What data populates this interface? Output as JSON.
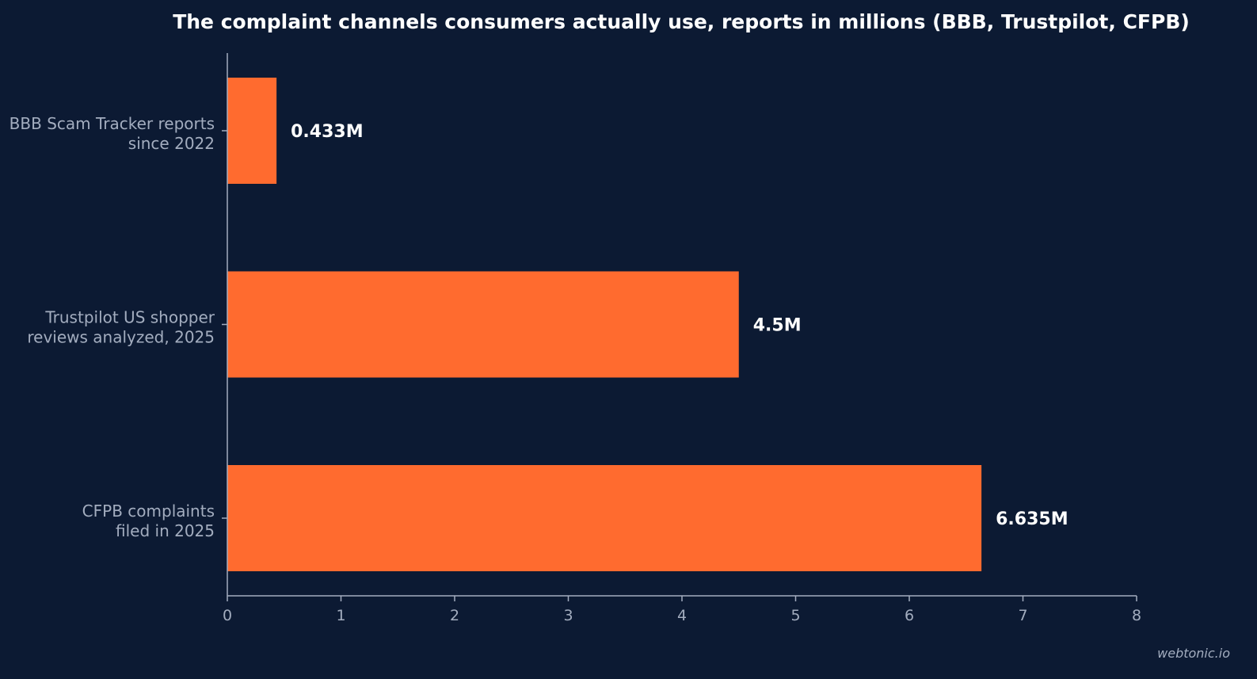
{
  "chart_data": {
    "type": "bar",
    "orientation": "horizontal",
    "title": "The complaint channels consumers actually use, reports in millions (BBB, Trustpilot, CFPB)",
    "categories": [
      [
        "BBB Scam Tracker reports",
        "since 2022"
      ],
      [
        "Trustpilot US shopper",
        "reviews analyzed, 2025"
      ],
      [
        "CFPB complaints",
        "filed in 2025"
      ]
    ],
    "values": [
      0.433,
      4.5,
      6.635
    ],
    "value_labels": [
      "0.433M",
      "4.5M",
      "6.635M"
    ],
    "xlim": [
      0,
      8
    ],
    "xticks": [
      "0",
      "1",
      "2",
      "3",
      "4",
      "5",
      "6",
      "7",
      "8"
    ],
    "xlabel": "",
    "ylabel": "",
    "grid": false,
    "bar_color": "#ff6b2f",
    "background_color": "#0c1a33"
  },
  "watermark": "webtonic.io"
}
